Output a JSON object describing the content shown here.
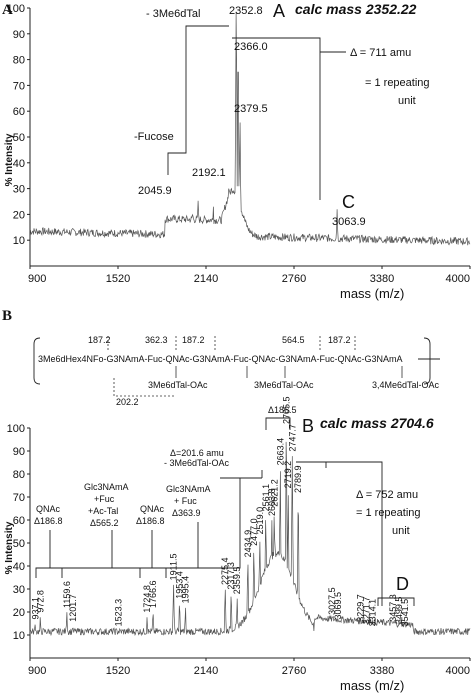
{
  "panelA": {
    "letter": "A",
    "xlim": [
      900,
      4000
    ],
    "ylim": [
      0,
      100
    ],
    "xticks": [
      "900",
      "1520",
      "2140",
      "2760",
      "3380",
      "4000"
    ],
    "yticks": [
      "10",
      "20",
      "30",
      "40",
      "50",
      "60",
      "70",
      "80",
      "90",
      "100"
    ],
    "ylabel": "% Intensity",
    "xlabel": "mass (m/z)",
    "peak_labels": [
      "2352.8",
      "2366.0",
      "2379.5",
      "2192.1",
      "2045.9",
      "3063.9"
    ],
    "annotations": {
      "loss_label": "- 3Me6dTal",
      "fucose_label": "-Fucose",
      "marker_A": "A",
      "calc_A": "calc mass 2352.22",
      "marker_C": "C",
      "delta": "Δ = 711 amu",
      "repeat_line1": "= 1 repeating",
      "repeat_line2": "unit"
    }
  },
  "panelB": {
    "letter": "B",
    "xlim": [
      900,
      4000
    ],
    "ylim": [
      0,
      100
    ],
    "xticks": [
      "900",
      "1520",
      "2140",
      "2760",
      "3380",
      "4000"
    ],
    "yticks": [
      "10",
      "20",
      "30",
      "40",
      "50",
      "60",
      "70",
      "80",
      "90",
      "100"
    ],
    "ylabel": "% Intensity",
    "xlabel": "mass (m/z)",
    "peak_labels": [
      "937.1",
      "972.8",
      "1159.6",
      "1201.7",
      "1523.3",
      "1724.8",
      "1766.6",
      "1911.5",
      "1953.4",
      "1995.4",
      "2275.4",
      "2317.3",
      "2359.5",
      "2434.9",
      "2477.0",
      "2519.0",
      "2561.1",
      "2603.8",
      "2621.2",
      "2663.4",
      "2705.5",
      "2719.2",
      "2747.7",
      "2789.9",
      "3027.5",
      "3069.5",
      "3229.7",
      "3271.7",
      "3314.1",
      "3457.3",
      "3499.5",
      "3541.5"
    ],
    "annotations": {
      "qnac_left": "QNAc",
      "qnac_left_delta": "Δ186.8",
      "glc_ac_1": "Glc3NAmA",
      "glc_ac_2": "+Fuc",
      "glc_ac_3": "+Ac-Tal",
      "glc_ac_delta": "Δ565.2",
      "qnac_mid": "QNAc",
      "qnac_mid_delta": "Δ186.8",
      "glc_fuc_1": "Glc3NAmA",
      "glc_fuc_2": "+ Fuc",
      "glc_fuc_delta": "Δ363.9",
      "delta_me_1": "Δ=201.6 amu",
      "delta_me_2": "- 3Me6dTal-OAc",
      "delta_top": "Δ186.5",
      "marker_B": "B",
      "calc_B": "calc mass 2704.6",
      "delta_752": "Δ = 752 amu",
      "repeat_line1": "= 1 repeating",
      "repeat_line2": "unit",
      "marker_D": "D"
    },
    "structure": {
      "main_chain": "3Me6dHex4NFo-G3NAmA-Fuc-QNAc-G3NAmA-Fuc-QNAc-G3NAmA-Fuc-QNAc-G3NAmA",
      "top_masses": [
        "187.2",
        "362.3",
        "187.2",
        "564.5",
        "187.2"
      ],
      "bottom_masses": [
        "202.2"
      ],
      "branches": [
        "3Me6dTal-OAc",
        "3Me6dTal-OAc",
        "3,4Me6dTal-OAc"
      ]
    }
  },
  "chart_data": [
    {
      "type": "line",
      "title": "",
      "xlabel": "mass (m/z)",
      "ylabel": "% Intensity",
      "xlim": [
        900,
        4000
      ],
      "ylim": [
        0,
        100
      ],
      "grid": false,
      "peaks": [
        {
          "x": 2045.9,
          "y": 22
        },
        {
          "x": 2085,
          "y": 26
        },
        {
          "x": 2192.1,
          "y": 23
        },
        {
          "x": 2300,
          "y": 30
        },
        {
          "x": 2352.8,
          "y": 100
        },
        {
          "x": 2366.0,
          "y": 84
        },
        {
          "x": 2379.5,
          "y": 56
        },
        {
          "x": 3063.9,
          "y": 22
        }
      ]
    },
    {
      "type": "line",
      "title": "",
      "xlabel": "mass (m/z)",
      "ylabel": "% Intensity",
      "xlim": [
        900,
        4000
      ],
      "ylim": [
        0,
        100
      ],
      "grid": false,
      "peaks": [
        {
          "x": 937.1,
          "y": 15
        },
        {
          "x": 972.8,
          "y": 18
        },
        {
          "x": 1159.6,
          "y": 20
        },
        {
          "x": 1201.7,
          "y": 14
        },
        {
          "x": 1523.3,
          "y": 12
        },
        {
          "x": 1724.8,
          "y": 18
        },
        {
          "x": 1766.6,
          "y": 20
        },
        {
          "x": 1911.5,
          "y": 32
        },
        {
          "x": 1953.4,
          "y": 24
        },
        {
          "x": 1995.4,
          "y": 22
        },
        {
          "x": 2275.4,
          "y": 30
        },
        {
          "x": 2317.3,
          "y": 28
        },
        {
          "x": 2359.5,
          "y": 26
        },
        {
          "x": 2434.9,
          "y": 42
        },
        {
          "x": 2477.0,
          "y": 47
        },
        {
          "x": 2519.0,
          "y": 52
        },
        {
          "x": 2561.1,
          "y": 62
        },
        {
          "x": 2603.8,
          "y": 60
        },
        {
          "x": 2621.2,
          "y": 64
        },
        {
          "x": 2663.4,
          "y": 82
        },
        {
          "x": 2705.5,
          "y": 100
        },
        {
          "x": 2719.2,
          "y": 72
        },
        {
          "x": 2747.7,
          "y": 88
        },
        {
          "x": 2789.9,
          "y": 70
        },
        {
          "x": 3027.5,
          "y": 17
        },
        {
          "x": 3069.5,
          "y": 15
        },
        {
          "x": 3229.7,
          "y": 14
        },
        {
          "x": 3271.7,
          "y": 13
        },
        {
          "x": 3314.1,
          "y": 12
        },
        {
          "x": 3457.3,
          "y": 14
        },
        {
          "x": 3499.5,
          "y": 13
        },
        {
          "x": 3541.5,
          "y": 12
        }
      ]
    }
  ]
}
